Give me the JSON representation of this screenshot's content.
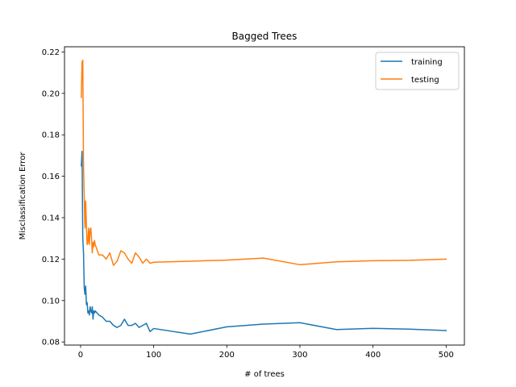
{
  "chart_data": {
    "type": "line",
    "title": "Bagged Trees",
    "xlabel": "# of trees",
    "ylabel": "Misclassification Error",
    "xlim": [
      -22,
      525
    ],
    "ylim": [
      0.0785,
      0.2225
    ],
    "xticks": [
      0,
      100,
      200,
      300,
      400,
      500
    ],
    "yticks": [
      0.08,
      0.1,
      0.12,
      0.14,
      0.16,
      0.18,
      0.2,
      0.22
    ],
    "ytick_labels": [
      "0.08",
      "0.10",
      "0.12",
      "0.14",
      "0.16",
      "0.18",
      "0.20",
      "0.22"
    ],
    "grid": false,
    "legend_position": "top-right",
    "series": [
      {
        "name": "training",
        "color": "#1f77b4",
        "x": [
          1,
          2,
          3,
          4,
          5,
          6,
          7,
          8,
          9,
          10,
          11,
          12,
          13,
          14,
          15,
          16,
          17,
          18,
          19,
          20,
          25,
          30,
          35,
          40,
          45,
          50,
          55,
          60,
          65,
          70,
          75,
          80,
          85,
          90,
          95,
          100,
          150,
          200,
          250,
          300,
          350,
          400,
          450,
          500
        ],
        "y": [
          0.165,
          0.172,
          0.13,
          0.123,
          0.106,
          0.103,
          0.107,
          0.098,
          0.099,
          0.094,
          0.095,
          0.093,
          0.097,
          0.095,
          0.094,
          0.097,
          0.091,
          0.095,
          0.094,
          0.095,
          0.093,
          0.092,
          0.09,
          0.09,
          0.088,
          0.087,
          0.088,
          0.091,
          0.088,
          0.088,
          0.089,
          0.087,
          0.088,
          0.089,
          0.085,
          0.0865,
          0.0838,
          0.0873,
          0.0886,
          0.0893,
          0.086,
          0.0866,
          0.0862,
          0.0855
        ]
      },
      {
        "name": "testing",
        "color": "#ff7f0e",
        "x": [
          1,
          2,
          3,
          4,
          5,
          6,
          7,
          8,
          9,
          10,
          11,
          12,
          13,
          14,
          15,
          16,
          17,
          18,
          19,
          20,
          25,
          30,
          35,
          40,
          45,
          50,
          55,
          60,
          65,
          70,
          75,
          80,
          85,
          90,
          95,
          100,
          150,
          200,
          250,
          300,
          350,
          400,
          450,
          500
        ],
        "y": [
          0.198,
          0.215,
          0.216,
          0.165,
          0.15,
          0.135,
          0.148,
          0.136,
          0.127,
          0.128,
          0.135,
          0.127,
          0.134,
          0.135,
          0.13,
          0.123,
          0.128,
          0.126,
          0.129,
          0.127,
          0.122,
          0.122,
          0.12,
          0.123,
          0.117,
          0.119,
          0.124,
          0.123,
          0.12,
          0.118,
          0.123,
          0.121,
          0.118,
          0.12,
          0.118,
          0.1185,
          0.119,
          0.1195,
          0.1205,
          0.1173,
          0.1187,
          0.1192,
          0.1194,
          0.12
        ]
      }
    ]
  }
}
